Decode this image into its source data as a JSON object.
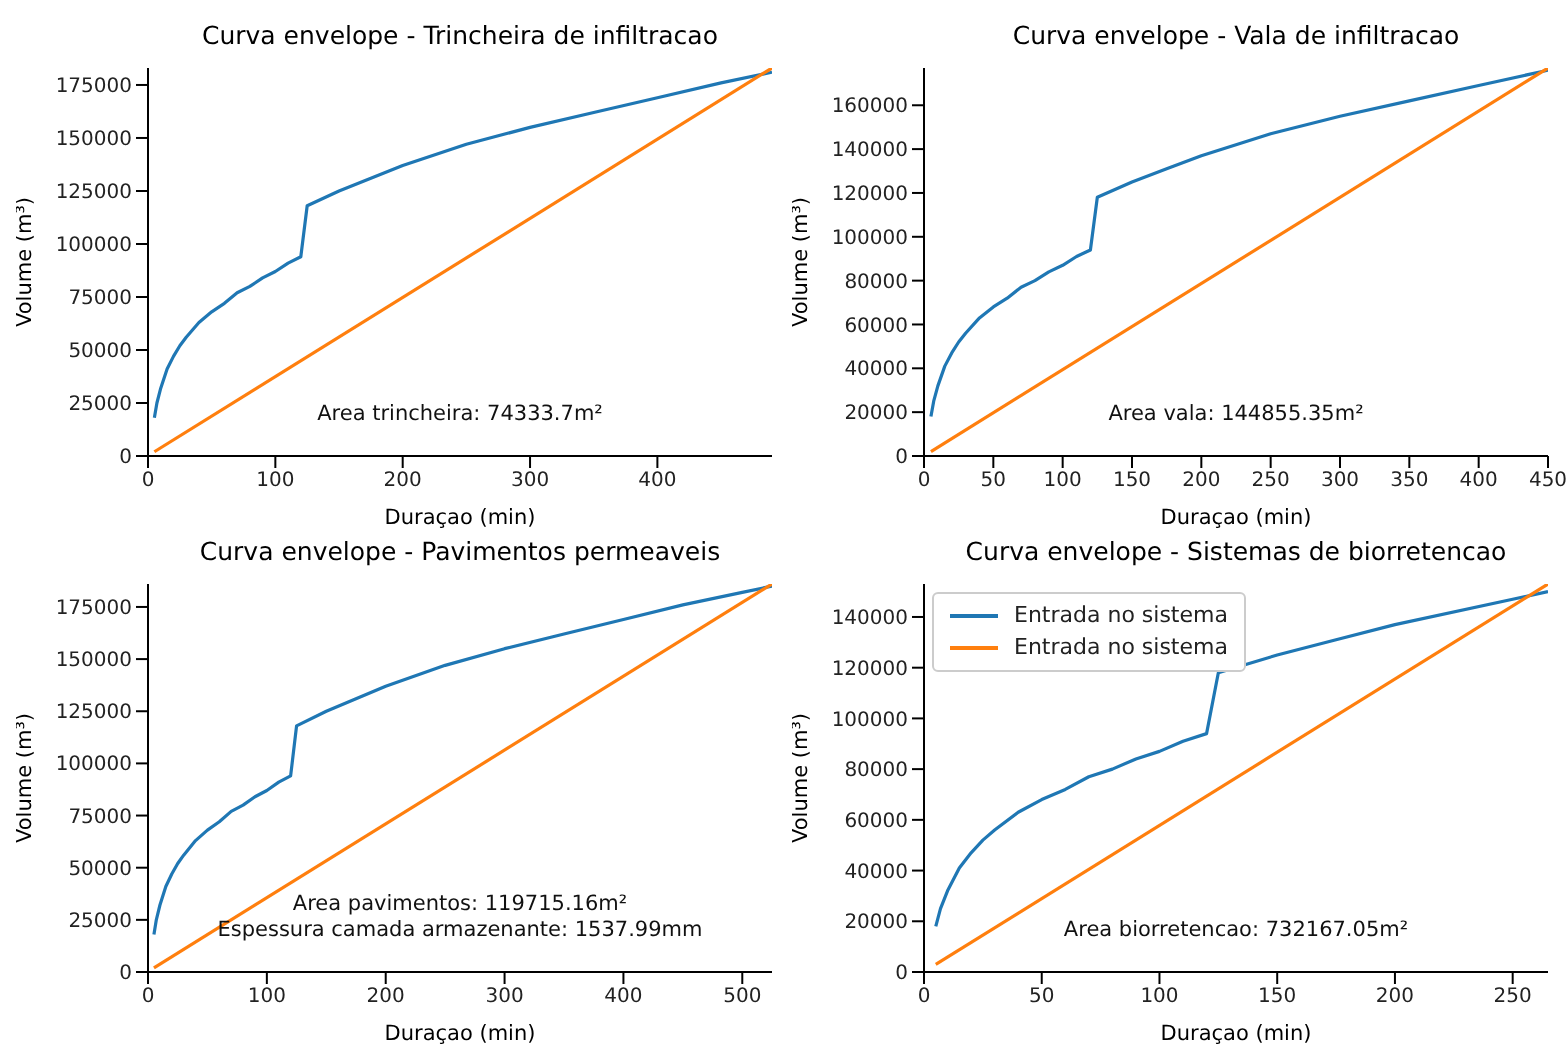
{
  "chart_data": [
    {
      "type": "line",
      "title": "Curva envelope - Trincheira de infiltracao",
      "xlabel": "Duraçao (min)",
      "ylabel": "Volume (m³)",
      "xlim": [
        0,
        490
      ],
      "xticks": [
        0,
        100,
        200,
        300,
        400
      ],
      "ylim": [
        0,
        183000
      ],
      "yticks": [
        0,
        25000,
        50000,
        75000,
        100000,
        125000,
        150000,
        175000
      ],
      "legend": false,
      "annotations": [
        "Area trincheira: 74333.7m²"
      ],
      "series": [
        {
          "color": "#1f77b4",
          "x": [
            5,
            7,
            10,
            15,
            20,
            25,
            30,
            40,
            50,
            60,
            70,
            80,
            90,
            100,
            110,
            120,
            125,
            150,
            175,
            200,
            250,
            300,
            350,
            400,
            450,
            490
          ],
          "values": [
            18000,
            25000,
            32000,
            41000,
            47000,
            52000,
            56000,
            63000,
            68000,
            72000,
            77000,
            80000,
            84000,
            87000,
            91000,
            94000,
            118000,
            125000,
            131000,
            137000,
            147000,
            155000,
            162000,
            169000,
            176000,
            181000
          ]
        },
        {
          "color": "#ff7f0e",
          "x": [
            5,
            490
          ],
          "values": [
            2000,
            183000
          ]
        }
      ]
    },
    {
      "type": "line",
      "title": "Curva envelope - Vala de infiltracao",
      "xlabel": "Duraçao (min)",
      "ylabel": "Volume (m³)",
      "xlim": [
        0,
        450
      ],
      "xticks": [
        0,
        50,
        100,
        150,
        200,
        250,
        300,
        350,
        400,
        450
      ],
      "ylim": [
        0,
        177000
      ],
      "yticks": [
        0,
        20000,
        40000,
        60000,
        80000,
        100000,
        120000,
        140000,
        160000
      ],
      "legend": false,
      "annotations": [
        "Area vala: 144855.35m²"
      ],
      "series": [
        {
          "color": "#1f77b4",
          "x": [
            5,
            7,
            10,
            15,
            20,
            25,
            30,
            40,
            50,
            60,
            70,
            80,
            90,
            100,
            110,
            120,
            125,
            150,
            175,
            200,
            250,
            300,
            350,
            400,
            450
          ],
          "values": [
            18000,
            25000,
            32000,
            41000,
            47000,
            52000,
            56000,
            63000,
            68000,
            72000,
            77000,
            80000,
            84000,
            87000,
            91000,
            94000,
            118000,
            125000,
            131000,
            137000,
            147000,
            155000,
            162000,
            169000,
            176000
          ]
        },
        {
          "color": "#ff7f0e",
          "x": [
            5,
            450
          ],
          "values": [
            2000,
            177000
          ]
        }
      ]
    },
    {
      "type": "line",
      "title": "Curva envelope - Pavimentos permeaveis",
      "xlabel": "Duraçao (min)",
      "ylabel": "Volume (m³)",
      "xlim": [
        0,
        525
      ],
      "xticks": [
        0,
        100,
        200,
        300,
        400,
        500
      ],
      "ylim": [
        0,
        186000
      ],
      "yticks": [
        0,
        25000,
        50000,
        75000,
        100000,
        125000,
        150000,
        175000
      ],
      "legend": false,
      "annotations": [
        "Area pavimentos: 119715.16m²",
        "Espessura camada armazenante: 1537.99mm"
      ],
      "series": [
        {
          "color": "#1f77b4",
          "x": [
            5,
            7,
            10,
            15,
            20,
            25,
            30,
            40,
            50,
            60,
            70,
            80,
            90,
            100,
            110,
            120,
            125,
            150,
            175,
            200,
            250,
            300,
            350,
            400,
            450,
            500,
            525
          ],
          "values": [
            18000,
            25000,
            32000,
            41000,
            47000,
            52000,
            56000,
            63000,
            68000,
            72000,
            77000,
            80000,
            84000,
            87000,
            91000,
            94000,
            118000,
            125000,
            131000,
            137000,
            147000,
            155000,
            162000,
            169000,
            176000,
            182000,
            185000
          ]
        },
        {
          "color": "#ff7f0e",
          "x": [
            5,
            525
          ],
          "values": [
            2000,
            186000
          ]
        }
      ]
    },
    {
      "type": "line",
      "title": "Curva envelope - Sistemas de biorretencao",
      "xlabel": "Duraçao (min)",
      "ylabel": "Volume (m³)",
      "xlim": [
        0,
        265
      ],
      "xticks": [
        0,
        50,
        100,
        150,
        200,
        250
      ],
      "ylim": [
        0,
        153000
      ],
      "yticks": [
        0,
        20000,
        40000,
        60000,
        80000,
        100000,
        120000,
        140000
      ],
      "legend": "top left",
      "annotations": [
        "Area biorretencao: 732167.05m²"
      ],
      "series": [
        {
          "name": "Entrada no sistema",
          "color": "#1f77b4",
          "x": [
            5,
            7,
            10,
            15,
            20,
            25,
            30,
            40,
            50,
            60,
            70,
            80,
            90,
            100,
            110,
            120,
            125,
            150,
            175,
            200,
            250,
            265
          ],
          "values": [
            18000,
            25000,
            32000,
            41000,
            47000,
            52000,
            56000,
            63000,
            68000,
            72000,
            77000,
            80000,
            84000,
            87000,
            91000,
            94000,
            118000,
            125000,
            131000,
            137000,
            147000,
            150000
          ]
        },
        {
          "name": "Entrada no sistema",
          "color": "#ff7f0e",
          "x": [
            5,
            265
          ],
          "values": [
            3000,
            153000
          ]
        }
      ]
    }
  ]
}
